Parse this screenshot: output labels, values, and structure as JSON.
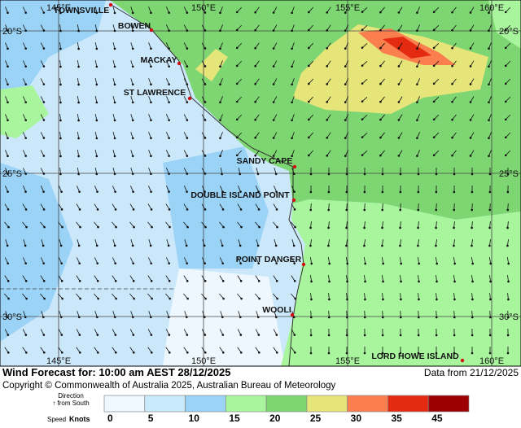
{
  "map": {
    "places": [
      "TOWNSVILLE",
      "BOWEN",
      "MACKAY",
      "ST LAWRENCE",
      "SANDY CAPE",
      "DOUBLE ISLAND POINT",
      "POINT DANGER",
      "WOOLI",
      "LORD HOWE ISLAND"
    ],
    "lat_labels": [
      "20°S",
      "25°S",
      "30°S"
    ],
    "lon_labels": [
      "145°E",
      "150°E",
      "155°E",
      "160°E"
    ]
  },
  "footer": {
    "title": "Wind Forecast for: 10:00 am AEST 28/12/2025",
    "data_from": "Data from 21/12/2025",
    "copyright": "Copyright © Commonwealth of Australia 2025, Australian Bureau of Meteorology"
  },
  "legend": {
    "direction_label": "Direction",
    "from_label": "↑ from South",
    "speed_label": "Speed",
    "units": "Knots",
    "ticks": [
      0,
      5,
      10,
      15,
      20,
      25,
      30,
      35,
      45
    ],
    "colors": [
      "#f0f8ff",
      "#c8eafc",
      "#9bd3f7",
      "#a9f59e",
      "#7ed672",
      "#e6e57a",
      "#fb7e4e",
      "#e52a12",
      "#9c0000"
    ]
  }
}
